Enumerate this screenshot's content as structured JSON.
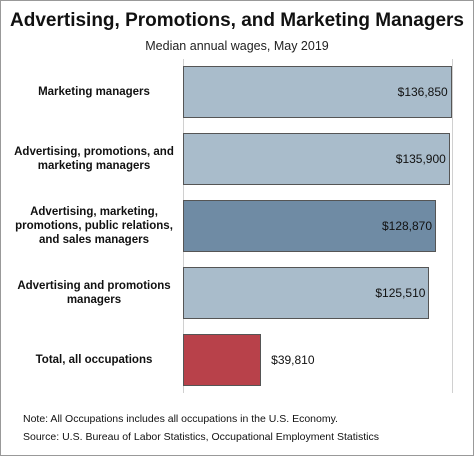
{
  "chart_data": {
    "type": "barh",
    "title": "Advertising, Promotions, and Marketing Managers",
    "subtitle": "Median annual wages, May 2019",
    "categories": [
      "Marketing managers",
      "Advertising, promotions, and marketing managers",
      "Advertising, marketing, promotions, public relations, and sales managers",
      "Advertising and promotions managers",
      "Total, all occupations"
    ],
    "values": [
      136850,
      135900,
      128870,
      125510,
      39810
    ],
    "value_labels": [
      "$136,850",
      "$135,900",
      "$128,870",
      "$125,510",
      "$39,810"
    ],
    "colors": [
      "#a9bccb",
      "#a9bccb",
      "#6f8ba4",
      "#a9bccb",
      "#b8414a"
    ],
    "xlim": [
      0,
      137000
    ],
    "notes": [
      "Note: All Occupations includes all occupations in the U.S. Economy.",
      "Source: U.S. Bureau of Labor Statistics, Occupational Employment Statistics"
    ]
  }
}
